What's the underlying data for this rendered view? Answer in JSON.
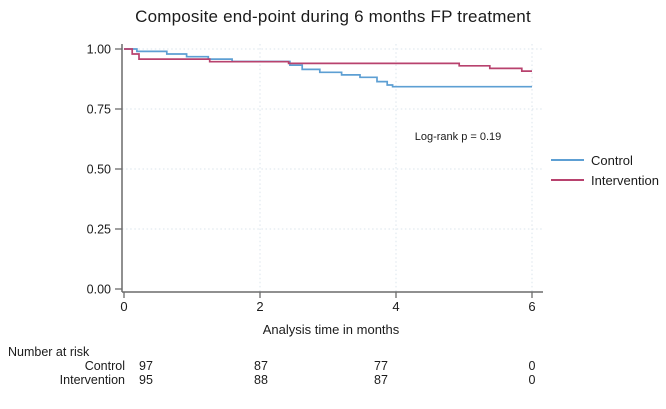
{
  "title": "Composite end-point during 6 months FP treatment",
  "annotation": {
    "log_rank": "Log-rank p = 0.19"
  },
  "legend": {
    "position": "right",
    "items": [
      {
        "label": "Control",
        "color": "#5d9fd3"
      },
      {
        "label": "Intervention",
        "color": "#b8426e"
      }
    ]
  },
  "chart_data": {
    "type": "line",
    "subtype": "kaplan-meier-step",
    "title": "Composite end-point during 6 months FP treatment",
    "xlabel": "Analysis time in months",
    "ylabel": "",
    "xlim": [
      0,
      6
    ],
    "ylim": [
      0.0,
      1.0
    ],
    "xticks": [
      0,
      2,
      4,
      6
    ],
    "ytick_labels": [
      "1.00",
      "0.75",
      "0.50",
      "0.25",
      "0.00"
    ],
    "ytick_values": [
      1.0,
      0.75,
      0.5,
      0.25,
      0.0
    ],
    "grid": "dotted",
    "legend_position": "right",
    "annotations": [
      {
        "text": "Log-rank p = 0.19"
      }
    ],
    "series": [
      {
        "name": "Control",
        "color": "#5d9fd3",
        "points": [
          [
            0,
            1.0
          ],
          [
            0.19,
            0.99
          ],
          [
            0.63,
            0.979
          ],
          [
            0.92,
            0.968
          ],
          [
            1.24,
            0.958
          ],
          [
            1.59,
            0.948
          ],
          [
            2.44,
            0.933
          ],
          [
            2.62,
            0.915
          ],
          [
            2.88,
            0.903
          ],
          [
            3.2,
            0.892
          ],
          [
            3.47,
            0.882
          ],
          [
            3.72,
            0.864
          ],
          [
            3.87,
            0.85
          ],
          [
            3.95,
            0.843
          ],
          [
            6,
            0.843
          ]
        ]
      },
      {
        "name": "Intervention",
        "color": "#b8426e",
        "points": [
          [
            0,
            1.0
          ],
          [
            0.12,
            0.979
          ],
          [
            0.22,
            0.958
          ],
          [
            1.26,
            0.947
          ],
          [
            2.42,
            0.94
          ],
          [
            4.93,
            0.93
          ],
          [
            5.38,
            0.919
          ],
          [
            5.85,
            0.908
          ],
          [
            6,
            0.908
          ]
        ]
      }
    ]
  },
  "risk_table": {
    "header": "Number at risk",
    "time_points": [
      0,
      2,
      4,
      6
    ],
    "rows": [
      {
        "label": "Control",
        "counts": [
          "97",
          "87",
          "77",
          "0"
        ]
      },
      {
        "label": "Intervention",
        "counts": [
          "95",
          "88",
          "87",
          "0"
        ]
      }
    ]
  },
  "colors": {
    "control": "#5d9fd3",
    "intervention": "#b8426e",
    "grid": "#dbe4ec",
    "axis": "#6b6b6b",
    "text": "#1b1b1b"
  }
}
